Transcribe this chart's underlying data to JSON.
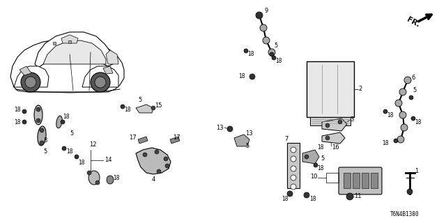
{
  "diagram_id": "T6N4B1380",
  "bg_color": "#ffffff",
  "line_color": "#000000",
  "figsize": [
    6.4,
    3.2
  ],
  "dpi": 100
}
